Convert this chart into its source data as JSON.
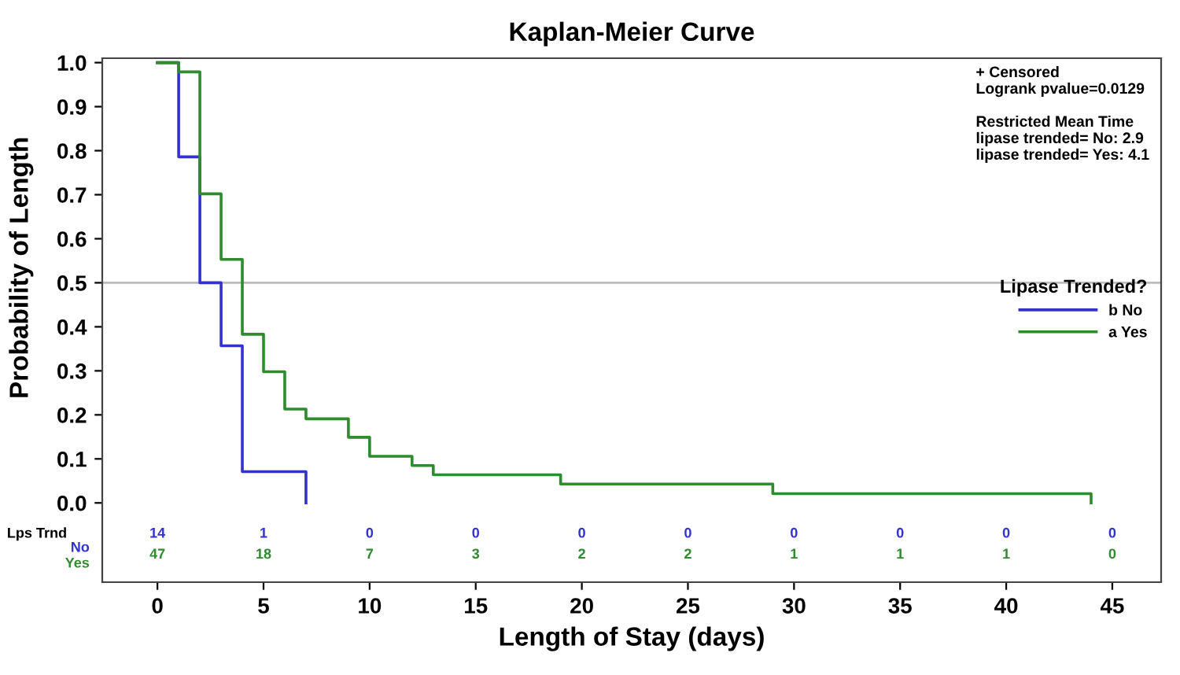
{
  "chart_data": {
    "type": "step",
    "title": "Kaplan-Meier Curve",
    "xlabel": "Length of Stay (days)",
    "ylabel": "Probability of Length",
    "legend_title": "Lipase Trended?",
    "legend": "right",
    "series": [
      {
        "name": "b No",
        "color": "#3333cc",
        "x": [
          0,
          1,
          2,
          3,
          4,
          7
        ],
        "values": [
          1.0,
          0.786,
          0.5,
          0.357,
          0.071,
          0.0
        ]
      },
      {
        "name": "a Yes",
        "color": "#2e8b2e",
        "x": [
          0,
          1,
          2,
          3,
          4,
          5,
          6,
          7,
          9,
          10,
          12,
          13,
          19,
          29,
          44
        ],
        "values": [
          1.0,
          0.979,
          0.702,
          0.553,
          0.383,
          0.298,
          0.213,
          0.191,
          0.149,
          0.106,
          0.085,
          0.064,
          0.043,
          0.021,
          0.0
        ]
      }
    ],
    "xlim": [
      -2.6,
      47.3
    ],
    "ylim": [
      -0.18,
      1.01
    ],
    "xticks": [
      0,
      5,
      10,
      15,
      20,
      25,
      30,
      35,
      40,
      45
    ],
    "yticks": [
      {
        "value": 0,
        "label": "0.0"
      },
      0.1,
      0.2,
      0.3,
      0.4,
      0.5,
      0.6,
      0.7,
      0.8,
      0.9,
      {
        "value": 1,
        "label": "1.0"
      }
    ],
    "ref_lines": [
      {
        "axis": "y",
        "value": 0.5,
        "color": "#bbbbbb"
      }
    ],
    "grid": false,
    "annotations": [
      "+ Censored\nLogrank pvalue=0.0129\n\nRestricted Mean Time\nlipase trended= No: 2.9\nlipase trended= Yes: 4.1",
      "Lps Trnd",
      "No",
      "Yes",
      "14",
      "1",
      "0",
      "0",
      "0",
      "0",
      "0",
      "0",
      "0",
      "0",
      "47",
      "18",
      "7",
      "3",
      "2",
      "2",
      "1",
      "1",
      "1",
      "0"
    ]
  }
}
